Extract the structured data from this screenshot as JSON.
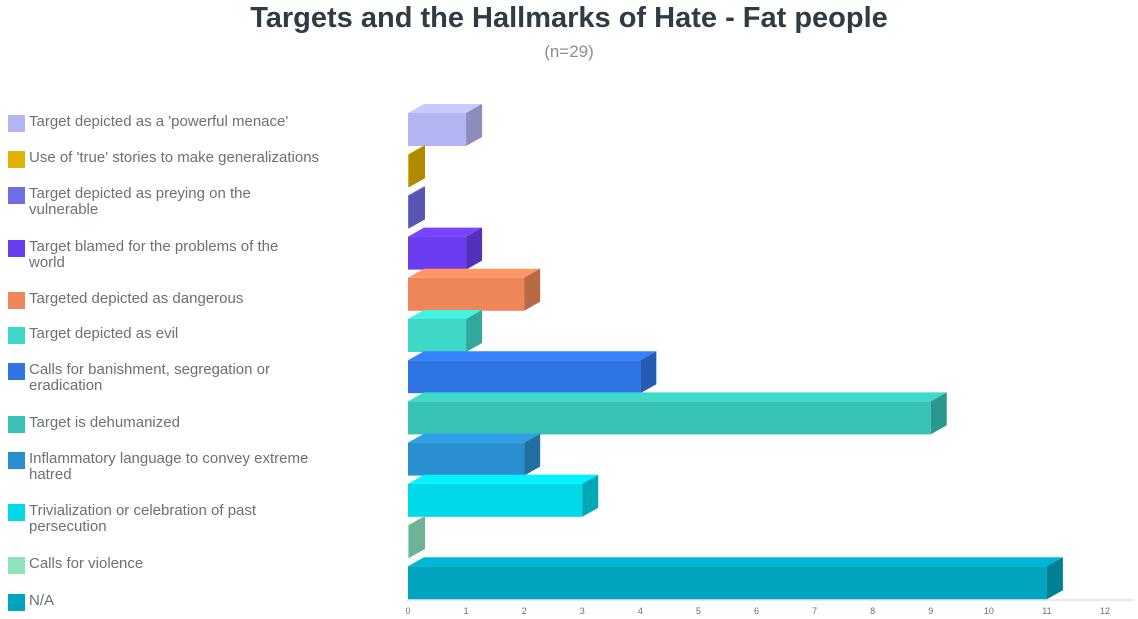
{
  "title": "Targets and the Hallmarks of Hate - Fat people",
  "subtitle": "(n=29)",
  "chart_data": {
    "type": "bar",
    "orientation": "horizontal",
    "title": "Targets and the Hallmarks of Hate - Fat people",
    "subtitle": "(n=29)",
    "categories": [
      "Target depicted as a 'powerful menace'",
      "Use of 'true' stories to make generalizations",
      "Target depicted as preying on the vulnerable",
      "Target blamed for the problems of the world",
      "Targeted depicted as dangerous",
      "Target depicted as evil",
      "Calls for banishment, segregation or eradication",
      "Target is dehumanized",
      "Inflammatory language to convey extreme hatred",
      "Trivialization or celebration of past persecution",
      "Calls for violence",
      "N/A"
    ],
    "values": [
      1,
      0,
      0,
      1,
      2,
      1,
      4,
      9,
      2,
      3,
      0,
      11
    ],
    "colors": [
      "#b3b4f2",
      "#e2b203",
      "#6e6fe6",
      "#6a3ef0",
      "#ef8659",
      "#3ed7c7",
      "#2f75e4",
      "#38c2b6",
      "#2a8fcf",
      "#00d9e8",
      "#8fe4c0",
      "#00a4bf"
    ],
    "xlim": [
      0,
      12
    ],
    "x_ticks": [
      "0",
      "1",
      "2",
      "3",
      "4",
      "5",
      "6",
      "7",
      "8",
      "9",
      "10",
      "11",
      "12"
    ],
    "legend_position": "left",
    "grid": false
  }
}
